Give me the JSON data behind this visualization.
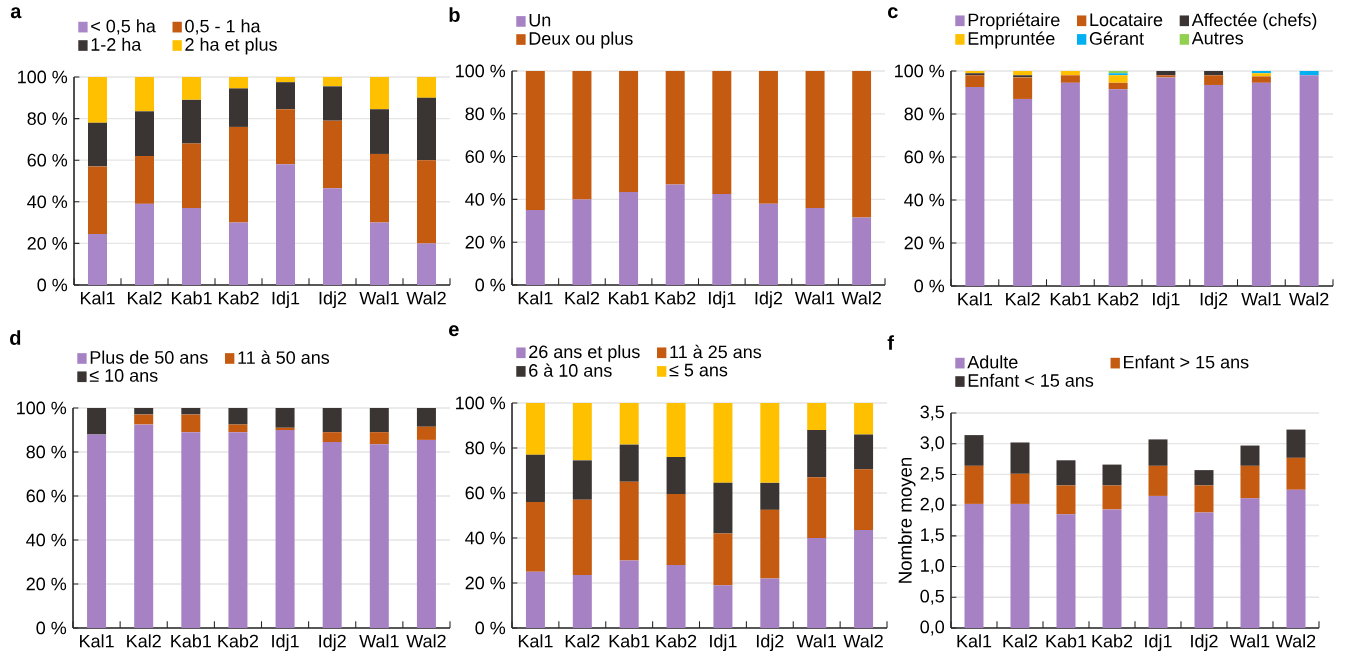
{
  "chart_data": [
    {
      "type": "bar",
      "title": "a",
      "stacked": true,
      "grid": "y",
      "legend": "top",
      "categories": [
        "Kal1",
        "Kal2",
        "Kab1",
        "Kab2",
        "Idj1",
        "Idj2",
        "Wal1",
        "Wal2"
      ],
      "ylim": [
        0,
        100
      ],
      "yticks": [
        {
          "value": 0,
          "label": "0 %"
        },
        {
          "value": 20,
          "label": "20 %"
        },
        {
          "value": 40,
          "label": "40 %"
        },
        {
          "value": 60,
          "label": "60 %"
        },
        {
          "value": 80,
          "label": "80 %"
        },
        {
          "value": 100,
          "label": "100 %"
        }
      ],
      "series": [
        {
          "name": "< 0,5 ha",
          "color": "#a886c8",
          "values": [
            24.5,
            39,
            37,
            30,
            58,
            46.5,
            30,
            20
          ]
        },
        {
          "name": "0,5 - 1 ha",
          "color": "#c55a11",
          "values": [
            32.5,
            23,
            31,
            46,
            26.5,
            32.5,
            33,
            40
          ]
        },
        {
          "name": "1-2 ha",
          "color": "#3a3533",
          "values": [
            21,
            21.5,
            21,
            18.5,
            13,
            16.5,
            21.5,
            30
          ]
        },
        {
          "name": "2 ha et plus",
          "color": "#ffc000",
          "values": [
            22,
            16.5,
            11,
            5.5,
            2.5,
            4.5,
            15.5,
            10
          ]
        }
      ]
    },
    {
      "type": "bar",
      "title": "b",
      "stacked": true,
      "grid": "y",
      "legend": "top",
      "categories": [
        "Kal1",
        "Kal2",
        "Kab1",
        "Kab2",
        "Idj1",
        "Idj2",
        "Wal1",
        "Wal2"
      ],
      "ylim": [
        0,
        100
      ],
      "yticks": [
        {
          "value": 0,
          "label": "0 %"
        },
        {
          "value": 20,
          "label": "20 %"
        },
        {
          "value": 40,
          "label": "40 %"
        },
        {
          "value": 60,
          "label": "60 %"
        },
        {
          "value": 80,
          "label": "80 %"
        },
        {
          "value": 100,
          "label": "100 %"
        }
      ],
      "series": [
        {
          "name": "Un",
          "color": "#a682c4",
          "values": [
            35,
            40,
            43.5,
            47,
            42.5,
            38,
            36,
            31.5
          ]
        },
        {
          "name": "Deux ou plus",
          "color": "#c55a11",
          "values": [
            65,
            60,
            56.5,
            53,
            57.5,
            62,
            64,
            68.5
          ]
        }
      ]
    },
    {
      "type": "bar",
      "title": "c",
      "stacked": true,
      "grid": "y",
      "legend": "top",
      "categories": [
        "Kal1",
        "Kal2",
        "Kab1",
        "Kab2",
        "Idj1",
        "Idj2",
        "Wal1",
        "Wal2"
      ],
      "ylim": [
        0,
        100
      ],
      "yticks": [
        {
          "value": 0,
          "label": "0 %"
        },
        {
          "value": 20,
          "label": "20 %"
        },
        {
          "value": 40,
          "label": "40 %"
        },
        {
          "value": 60,
          "label": "60 %"
        },
        {
          "value": 80,
          "label": "80 %"
        },
        {
          "value": 100,
          "label": "100 %"
        }
      ],
      "series": [
        {
          "name": "Propriétaire",
          "color": "#a682c4",
          "values": [
            92.5,
            87,
            94.5,
            91.5,
            97,
            93.5,
            94.5,
            98
          ]
        },
        {
          "name": "Locataire",
          "color": "#c55a11",
          "values": [
            5.5,
            10,
            3.5,
            3,
            1,
            4.5,
            3,
            0
          ]
        },
        {
          "name": "Affectée (chefs)",
          "color": "#3a3533",
          "values": [
            1,
            1,
            0,
            0,
            2,
            2,
            0,
            0
          ]
        },
        {
          "name": "Empruntée",
          "color": "#ffc000",
          "values": [
            1,
            2,
            2,
            3.5,
            0,
            0,
            1.5,
            0
          ]
        },
        {
          "name": "Gérant",
          "color": "#00b0f0",
          "values": [
            0,
            0,
            0,
            1,
            0,
            0,
            1,
            2
          ]
        },
        {
          "name": "Autres",
          "color": "#92d050",
          "values": [
            0,
            0,
            0,
            1,
            0,
            0,
            0,
            0
          ]
        }
      ]
    },
    {
      "type": "bar",
      "title": "d",
      "stacked": true,
      "grid": "y",
      "legend": "top",
      "categories": [
        "Kal1",
        "Kal2",
        "Kab1",
        "Kab2",
        "Idj1",
        "Idj2",
        "Wal1",
        "Wal2"
      ],
      "ylim": [
        0,
        100
      ],
      "yticks": [
        {
          "value": 0,
          "label": "0 %"
        },
        {
          "value": 20,
          "label": "20 %"
        },
        {
          "value": 40,
          "label": "40 %"
        },
        {
          "value": 60,
          "label": "60 %"
        },
        {
          "value": 80,
          "label": "80 %"
        },
        {
          "value": 100,
          "label": "100 %"
        }
      ],
      "series": [
        {
          "name": "Plus de 50 ans",
          "color": "#a682c4",
          "values": [
            88,
            92.5,
            89,
            89,
            90,
            84.5,
            83.5,
            85.5
          ]
        },
        {
          "name": "11 à 50 ans",
          "color": "#c55a11",
          "values": [
            0,
            4.5,
            8,
            3.5,
            1,
            4.5,
            5.5,
            6
          ]
        },
        {
          "name": "≤ 10 ans",
          "color": "#3a3533",
          "values": [
            12,
            3,
            3,
            7.5,
            9,
            11,
            11,
            8.5
          ]
        }
      ]
    },
    {
      "type": "bar",
      "title": "e",
      "stacked": true,
      "grid": "y",
      "legend": "top",
      "categories": [
        "Kal1",
        "Kal2",
        "Kab1",
        "Kab2",
        "Idj1",
        "Idj2",
        "Wal1",
        "Wal2"
      ],
      "ylim": [
        0,
        100
      ],
      "yticks": [
        {
          "value": 0,
          "label": "0 %"
        },
        {
          "value": 20,
          "label": "20 %"
        },
        {
          "value": 40,
          "label": "40 %"
        },
        {
          "value": 60,
          "label": "60 %"
        },
        {
          "value": 80,
          "label": "80 %"
        },
        {
          "value": 100,
          "label": "100 %"
        }
      ],
      "series": [
        {
          "name": "26 ans et plus",
          "color": "#a682c4",
          "values": [
            25,
            23.5,
            30,
            28,
            19,
            22,
            40,
            43.5
          ]
        },
        {
          "name": "11 à 25 ans",
          "color": "#c55a11",
          "values": [
            31,
            33.5,
            35,
            31.5,
            23,
            30.5,
            27,
            27
          ]
        },
        {
          "name": "6 à 10 ans",
          "color": "#3a3533",
          "values": [
            21,
            17.5,
            16.5,
            16.5,
            22.5,
            12,
            21,
            15.5
          ]
        },
        {
          "name": "≤ 5 ans",
          "color": "#ffc000",
          "values": [
            23,
            25.5,
            18.5,
            24,
            35.5,
            35.5,
            12,
            14
          ]
        }
      ]
    },
    {
      "type": "bar",
      "title": "f",
      "stacked": true,
      "grid": "y",
      "legend": "top",
      "ylabel": "Nombre moyen",
      "categories": [
        "Kal1",
        "Kal2",
        "Kab1",
        "Kab2",
        "Idj1",
        "Idj2",
        "Wal1",
        "Wal2"
      ],
      "ylim": [
        0,
        3.5
      ],
      "yticks": [
        {
          "value": 0,
          "label": "0,0"
        },
        {
          "value": 0.5,
          "label": "0,5"
        },
        {
          "value": 1,
          "label": "1,0"
        },
        {
          "value": 1.5,
          "label": "1,5"
        },
        {
          "value": 2,
          "label": "2,0"
        },
        {
          "value": 2.5,
          "label": "2,5"
        },
        {
          "value": 3,
          "label": "3,0"
        },
        {
          "value": 3.5,
          "label": "3,5"
        }
      ],
      "series": [
        {
          "name": "Adulte",
          "color": "#a682c4",
          "values": [
            2.02,
            2.02,
            1.85,
            1.93,
            2.15,
            1.88,
            2.11,
            2.25
          ]
        },
        {
          "name": "Enfant > 15 ans",
          "color": "#c55a11",
          "values": [
            0.62,
            0.49,
            0.47,
            0.39,
            0.49,
            0.44,
            0.53,
            0.52
          ]
        },
        {
          "name": "Enfant < 15 ans",
          "color": "#3a3533",
          "values": [
            0.5,
            0.51,
            0.41,
            0.34,
            0.43,
            0.25,
            0.33,
            0.46
          ]
        }
      ]
    }
  ]
}
